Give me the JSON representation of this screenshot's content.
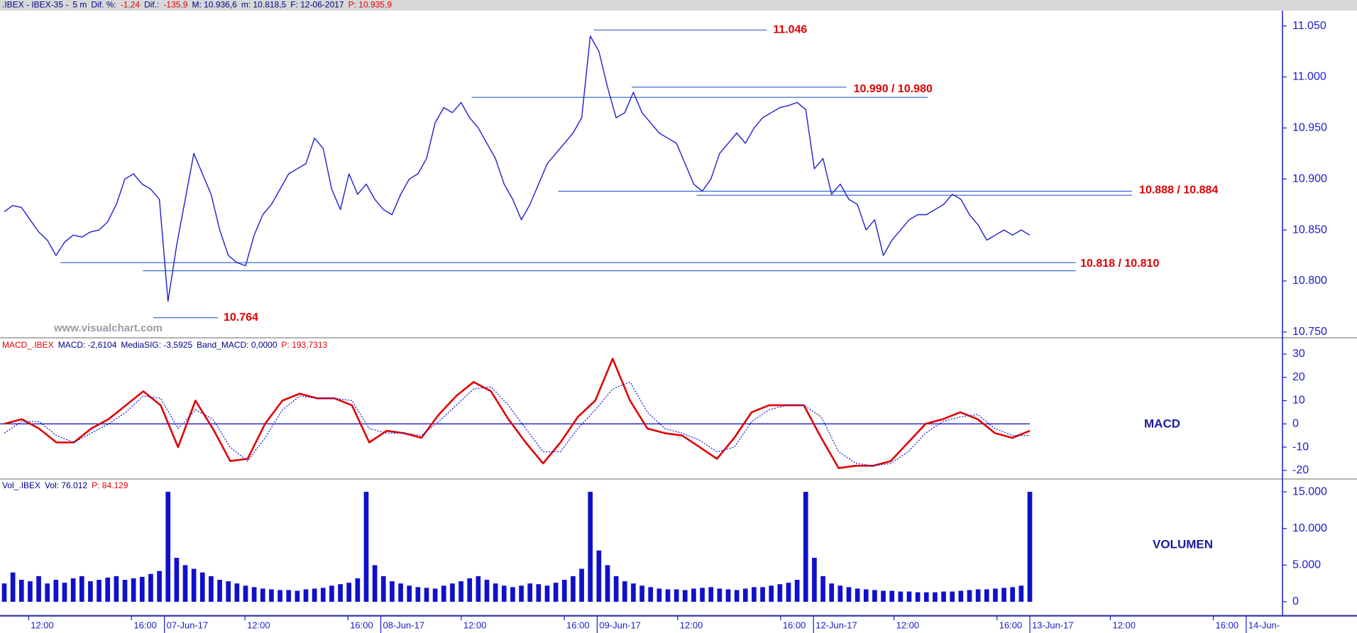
{
  "header": [
    {
      "text": ".IBEX - IBEX-35 -",
      "color": "#00008b"
    },
    {
      "text": "5 m",
      "color": "#00008b"
    },
    {
      "text": "Dif. %:",
      "color": "#00008b"
    },
    {
      "text": "-1,24",
      "color": "#e00000"
    },
    {
      "text": "Dif.:",
      "color": "#00008b"
    },
    {
      "text": "-135,9",
      "color": "#e00000"
    },
    {
      "text": "M: 10.936,6",
      "color": "#00008b"
    },
    {
      "text": "m: 10.818,5",
      "color": "#00008b"
    },
    {
      "text": "F: 12-06-2017",
      "color": "#00008b"
    },
    {
      "text": "P: 10.935,9",
      "color": "#e00000"
    }
  ],
  "watermark": "www.visualchart.com",
  "x_axis": {
    "ticks": [
      "12:00",
      "16:00",
      "07-Jun-17",
      "12:00",
      "16:00",
      "08-Jun-17",
      "12:00",
      "16:00",
      "09-Jun-17",
      "12:00",
      "16:00",
      "12-Jun-17",
      "12:00",
      "16:00",
      "13-Jun-17",
      "12:00",
      "16:00",
      "14-Jun-"
    ]
  },
  "chart_data": [
    {
      "type": "line",
      "color": "#1f1fd0",
      "values": [
        10868,
        10874,
        10872,
        10860,
        10848,
        10840,
        10825,
        10838,
        10845,
        10843,
        10848,
        10850,
        10858,
        10875,
        10900,
        10905,
        10895,
        10890,
        10880,
        10780,
        10835,
        10880,
        10925,
        10905,
        10885,
        10850,
        10825,
        10818,
        10815,
        10845,
        10865,
        10875,
        10890,
        10905,
        10910,
        10915,
        10940,
        10930,
        10890,
        10870,
        10905,
        10885,
        10895,
        10880,
        10870,
        10865,
        10885,
        10900,
        10905,
        10920,
        10955,
        10970,
        10965,
        10975,
        10960,
        10950,
        10935,
        10920,
        10895,
        10880,
        10860,
        10875,
        10895,
        10915,
        10925,
        10935,
        10945,
        10960,
        11040,
        11025,
        10990,
        10960,
        10965,
        10985,
        10965,
        10955,
        10945,
        10940,
        10935,
        10915,
        10895,
        10888,
        10900,
        10925,
        10935,
        10945,
        10935,
        10950,
        10960,
        10965,
        10970,
        10972,
        10975,
        10968,
        10910,
        10920,
        10885,
        10895,
        10880,
        10875,
        10850,
        10860,
        10825,
        10840,
        10850,
        10860,
        10865,
        10865,
        10870,
        10875,
        10885,
        10880,
        10865,
        10855,
        10840,
        10845,
        10850,
        10845,
        10850,
        10845
      ],
      "ylim": [
        10745,
        11065
      ],
      "yticks": [
        {
          "value": 10750,
          "label": "10.750"
        },
        {
          "value": 10800,
          "label": "10.800"
        },
        {
          "value": 10850,
          "label": "10.850"
        },
        {
          "value": 10900,
          "label": "10.900"
        },
        {
          "value": 10950,
          "label": "10.950"
        },
        {
          "value": 11000,
          "label": "11.000"
        },
        {
          "value": 11050,
          "label": "11.050"
        }
      ],
      "annotations": [
        {
          "label": "11.046",
          "values": [
            11046
          ]
        },
        {
          "label": "10.990 / 10.980",
          "values": [
            10990,
            10980
          ]
        },
        {
          "label": "10.888 / 10.884",
          "values": [
            10888,
            10884
          ]
        },
        {
          "label": "10.818 / 10.810",
          "values": [
            10818,
            10810
          ]
        },
        {
          "label": "10.764",
          "values": [
            10764
          ]
        }
      ]
    },
    {
      "type": "line",
      "header": [
        {
          "text": "MACD_.IBEX",
          "color": "#e00000"
        },
        {
          "text": "MACD: -2,6104",
          "color": "#00008b"
        },
        {
          "text": "MediaSIG: -3,5925",
          "color": "#00008b"
        },
        {
          "text": "Band_MACD: 0,0000",
          "color": "#00008b"
        },
        {
          "text": "P: 193,7313",
          "color": "#e00000"
        }
      ],
      "label": "MACD",
      "band": 0,
      "series": [
        {
          "color": "#e00000",
          "style": "solid",
          "values": [
            0,
            2,
            -2,
            -8,
            -8,
            -2,
            2,
            8,
            14,
            8,
            -10,
            10,
            -2,
            -16,
            -15,
            0,
            10,
            13,
            11,
            11,
            8,
            -8,
            -3,
            -4,
            -6,
            4,
            12,
            18,
            14,
            2,
            -8,
            -17,
            -8,
            3,
            10,
            28,
            10,
            -2,
            -4,
            -5,
            -10,
            -15,
            -6,
            5,
            8,
            8,
            8,
            -6,
            -19,
            -18,
            -18,
            -16,
            -8,
            0,
            2,
            5,
            2,
            -4,
            -6,
            -3
          ]
        },
        {
          "color": "#2020d0",
          "style": "dotted",
          "values": [
            -4,
            1,
            1,
            -5,
            -8,
            -4,
            0,
            5,
            12,
            11,
            -2,
            6,
            2,
            -10,
            -16,
            -6,
            6,
            12,
            11,
            11,
            10,
            -2,
            -4,
            -4,
            -5,
            1,
            8,
            15,
            16,
            8,
            -2,
            -12,
            -12,
            -2,
            6,
            15,
            18,
            5,
            -2,
            -4,
            -7,
            -12,
            -10,
            1,
            6,
            8,
            8,
            3,
            -12,
            -17,
            -18,
            -17,
            -12,
            -4,
            1,
            3,
            4,
            -2,
            -5,
            -5
          ]
        }
      ],
      "ylim": [
        -23.4,
        36.4
      ],
      "yticks": [
        -20,
        -10,
        0,
        10,
        20,
        30
      ]
    },
    {
      "type": "bar",
      "header": [
        {
          "text": "Vol_.IBEX",
          "color": "#00008b"
        },
        {
          "text": "Vol: 76.012",
          "color": "#00008b"
        },
        {
          "text": "P: 84.129",
          "color": "#e00000"
        }
      ],
      "label": "VOLUMEN",
      "color": "#1010cc",
      "values": [
        2500,
        4000,
        3000,
        2800,
        3500,
        2500,
        3000,
        2600,
        3200,
        3500,
        2800,
        3000,
        3300,
        3500,
        3000,
        3200,
        3400,
        3800,
        4200,
        15000,
        6000,
        5000,
        4500,
        4000,
        3500,
        3000,
        2800,
        2500,
        2200,
        2000,
        1800,
        1700,
        1600,
        1600,
        1500,
        1700,
        1800,
        1900,
        2200,
        2400,
        2600,
        3200,
        15000,
        5000,
        3500,
        2800,
        2500,
        2200,
        2000,
        1900,
        1800,
        2200,
        2500,
        2800,
        3200,
        3500,
        3000,
        2500,
        2200,
        2000,
        2200,
        2500,
        2400,
        2200,
        2600,
        3000,
        3500,
        4500,
        15000,
        7000,
        5000,
        3500,
        2800,
        2500,
        2200,
        2000,
        1800,
        1700,
        1700,
        1600,
        1800,
        1900,
        2000,
        1800,
        1700,
        1600,
        1800,
        2000,
        2000,
        2200,
        2400,
        2600,
        3000,
        15000,
        6000,
        3500,
        2500,
        2200,
        2000,
        1800,
        1700,
        1600,
        1500,
        1500,
        1400,
        1400,
        1300,
        1300,
        1300,
        1400,
        1400,
        1500,
        1600,
        1700,
        1700,
        1800,
        1900,
        2000,
        2200,
        15000
      ],
      "ylim": [
        -1740,
        16650
      ],
      "yticks": [
        0,
        {
          "value": 5000,
          "label": "5.000"
        },
        {
          "value": 10000,
          "label": "10.000"
        },
        {
          "value": 15000,
          "label": "15.000"
        }
      ]
    }
  ]
}
